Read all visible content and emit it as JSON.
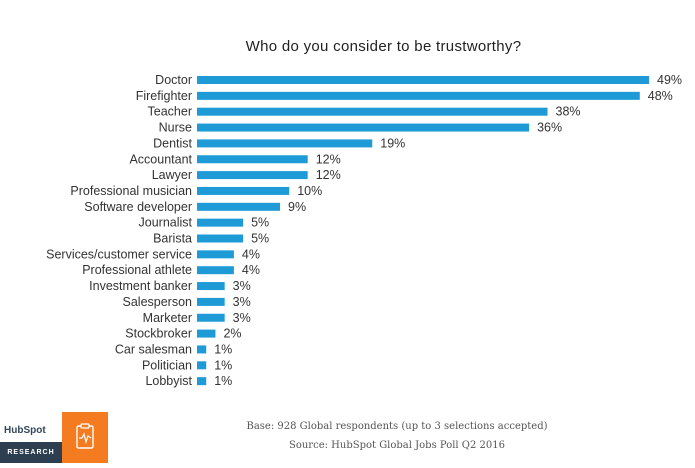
{
  "chart_data": {
    "type": "bar",
    "orientation": "horizontal",
    "title": "Who do you consider to be trustworthy?",
    "categories": [
      "Doctor",
      "Firefighter",
      "Teacher",
      "Nurse",
      "Dentist",
      "Accountant",
      "Lawyer",
      "Professional musician",
      "Software developer",
      "Journalist",
      "Barista",
      "Services/customer service",
      "Professional athlete",
      "Investment banker",
      "Salesperson",
      "Marketer",
      "Stockbroker",
      "Car salesman",
      "Politician",
      "Lobbyist"
    ],
    "values": [
      49,
      48,
      38,
      36,
      19,
      12,
      12,
      10,
      9,
      5,
      5,
      4,
      4,
      3,
      3,
      3,
      2,
      1,
      1,
      1
    ],
    "value_suffix": "%",
    "bar_color": "#1e9bd7",
    "grid": false,
    "legend": "none",
    "xlabel": "",
    "ylabel": ""
  },
  "footer": {
    "base": "Base: 928 Global respondents (up to 3 selections accepted)",
    "source": "Source: HubSpot Global Jobs Poll Q2 2016"
  },
  "logo": {
    "brand": "HubSpot",
    "label": "RESEARCH",
    "badge_color": "#f47b20",
    "badge_icon": "clipboard-pulse-icon"
  }
}
